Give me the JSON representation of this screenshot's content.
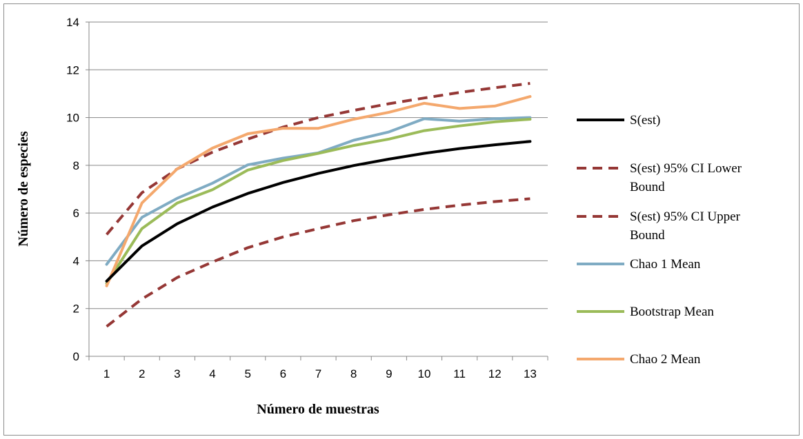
{
  "chart_data": {
    "type": "line",
    "title": "",
    "xlabel": "Número de muestras",
    "ylabel": "Número de especies",
    "x": [
      1,
      2,
      3,
      4,
      5,
      6,
      7,
      8,
      9,
      10,
      11,
      12,
      13
    ],
    "x_tick_labels": [
      "1",
      "2",
      "3",
      "4",
      "5",
      "6",
      "7",
      "8",
      "9",
      "10",
      "11",
      "12",
      "13"
    ],
    "ylim": [
      0,
      14
    ],
    "y_ticks": [
      0,
      2,
      4,
      6,
      8,
      10,
      12,
      14
    ],
    "y_tick_labels": [
      "0",
      "2",
      "4",
      "6",
      "8",
      "10",
      "12",
      "14"
    ],
    "grid": true,
    "legend_position": "right",
    "series": [
      {
        "name": "S(est)",
        "color": "#000000",
        "dash": false,
        "values": [
          3.15,
          4.62,
          5.55,
          6.25,
          6.82,
          7.28,
          7.66,
          7.99,
          8.26,
          8.5,
          8.7,
          8.86,
          9.0
        ]
      },
      {
        "name": "S(est) 95% CI Lower Bound",
        "color": "#953735",
        "dash": true,
        "values": [
          5.1,
          6.85,
          7.85,
          8.55,
          9.1,
          9.6,
          10.0,
          10.3,
          10.58,
          10.82,
          11.05,
          11.25,
          11.43
        ]
      },
      {
        "name": "S(est) 95% CI Upper Bound",
        "color": "#953735",
        "dash": true,
        "values": [
          1.25,
          2.4,
          3.3,
          3.95,
          4.55,
          5.0,
          5.35,
          5.68,
          5.93,
          6.15,
          6.33,
          6.48,
          6.6
        ]
      },
      {
        "name": "Chao 1 Mean",
        "color": "#7fabc3",
        "dash": false,
        "values": [
          3.85,
          5.82,
          6.62,
          7.25,
          8.02,
          8.3,
          8.52,
          9.05,
          9.4,
          9.95,
          9.85,
          9.95,
          10.0
        ]
      },
      {
        "name": "Bootstrap Mean",
        "color": "#9bbb59",
        "dash": false,
        "values": [
          3.05,
          5.35,
          6.42,
          6.98,
          7.8,
          8.2,
          8.5,
          8.83,
          9.1,
          9.45,
          9.65,
          9.82,
          9.93
        ]
      },
      {
        "name": "Chao 2 Mean",
        "color": "#f4a86d",
        "dash": false,
        "values": [
          2.95,
          6.42,
          7.85,
          8.72,
          9.32,
          9.55,
          9.55,
          9.93,
          10.22,
          10.6,
          10.38,
          10.48,
          10.88
        ]
      }
    ]
  }
}
